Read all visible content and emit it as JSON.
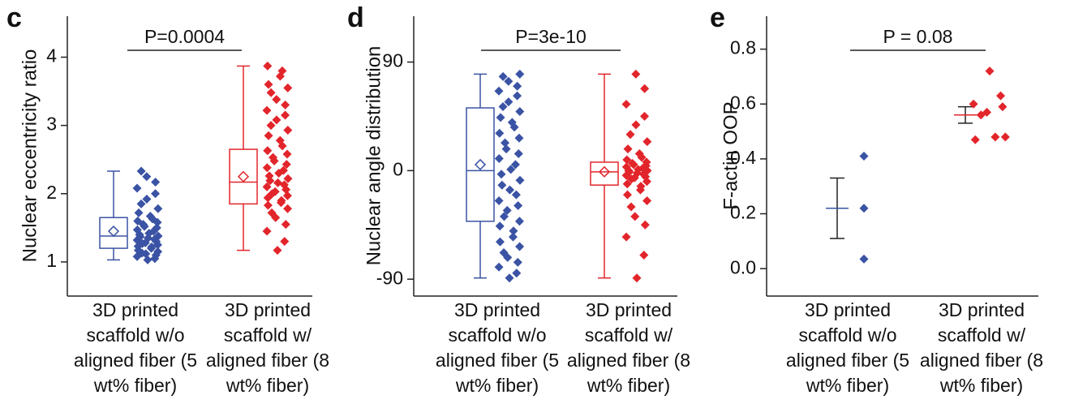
{
  "chart_data": [
    {
      "type": "box",
      "panel": "c",
      "ylabel": "Nuclear eccentricity ratio",
      "annotation": "P=0.0004",
      "categories": [
        "3D printed scaffold w/o aligned fiber (5 wt% fiber)",
        "3D printed scaffold w/ aligned fiber (8 wt% fiber)"
      ],
      "colors": [
        "#3a53a4",
        "#e2252b"
      ],
      "ylim": [
        0.5,
        4.6
      ],
      "yticks": [
        1,
        2,
        3,
        4
      ],
      "boxes": [
        {
          "min": 1.03,
          "q1": 1.2,
          "median": 1.38,
          "q3": 1.65,
          "max": 2.33,
          "mean": 1.45
        },
        {
          "min": 1.17,
          "q1": 1.85,
          "median": 2.17,
          "q3": 2.65,
          "max": 3.87,
          "mean": 2.25
        }
      ],
      "points": [
        [
          1.03,
          1.05,
          1.08,
          1.1,
          1.12,
          1.13,
          1.15,
          1.17,
          1.2,
          1.22,
          1.23,
          1.25,
          1.27,
          1.28,
          1.3,
          1.32,
          1.33,
          1.35,
          1.37,
          1.38,
          1.4,
          1.42,
          1.45,
          1.47,
          1.5,
          1.52,
          1.55,
          1.58,
          1.6,
          1.63,
          1.67,
          1.72,
          1.78,
          1.85,
          1.92,
          2.0,
          2.08,
          2.17,
          2.25,
          2.33
        ],
        [
          1.17,
          1.3,
          1.45,
          1.55,
          1.65,
          1.72,
          1.78,
          1.83,
          1.87,
          1.9,
          1.94,
          1.97,
          2.0,
          2.03,
          2.06,
          2.1,
          2.13,
          2.16,
          2.19,
          2.22,
          2.26,
          2.3,
          2.34,
          2.38,
          2.43,
          2.48,
          2.53,
          2.58,
          2.63,
          2.7,
          2.78,
          2.85,
          2.93,
          3.0,
          3.08,
          3.15,
          3.22,
          3.3,
          3.38,
          3.48,
          3.55,
          3.6,
          3.72,
          3.8,
          3.87
        ]
      ]
    },
    {
      "type": "box",
      "panel": "d",
      "ylabel": "Nuclear angle distribution",
      "annotation": "P=3e-10",
      "categories": [
        "3D printed scaffold w/o aligned fiber (5 wt% fiber)",
        "3D printed scaffold w/ aligned fiber (8 wt% fiber)"
      ],
      "colors": [
        "#3a53a4",
        "#e2252b"
      ],
      "ylim": [
        -104,
        128
      ],
      "yticks": [
        -90,
        0,
        90
      ],
      "boxes": [
        {
          "min": -89,
          "q1": -42,
          "median": 0,
          "q3": 52,
          "max": 80,
          "mean": 5
        },
        {
          "min": -89,
          "q1": -12,
          "median": -1,
          "q3": 7,
          "max": 80,
          "mean": -1
        }
      ],
      "points": [
        [
          -89,
          -85,
          -80,
          -76,
          -72,
          -68,
          -63,
          -59,
          -55,
          -50,
          -46,
          -42,
          -38,
          -33,
          -29,
          -25,
          -20,
          -16,
          -12,
          -8,
          -3,
          1,
          5,
          10,
          14,
          18,
          23,
          27,
          31,
          36,
          40,
          44,
          49,
          53,
          57,
          62,
          66,
          70,
          74,
          78,
          80
        ],
        [
          -89,
          -70,
          -55,
          -45,
          -38,
          -30,
          -25,
          -20,
          -16,
          -13,
          -11,
          -9,
          -7,
          -6,
          -5,
          -4,
          -3,
          -2,
          -1,
          0,
          0,
          1,
          2,
          3,
          4,
          5,
          6,
          7,
          9,
          11,
          14,
          18,
          24,
          30,
          38,
          45,
          55,
          68,
          80
        ]
      ]
    },
    {
      "type": "dot",
      "panel": "e",
      "ylabel": "F-actin OOP",
      "annotation": "P =  0.08",
      "categories": [
        "3D printed scaffold w/o aligned fiber (5 wt% fiber)",
        "3D printed scaffold w/ aligned fiber (8 wt% fiber)"
      ],
      "colors": [
        "#3a53a4",
        "#e2252b"
      ],
      "ylim": [
        -0.1,
        0.92
      ],
      "yticks": [
        {
          "value": 0,
          "label": "0.0"
        },
        {
          "value": 0.2,
          "label": "0.2"
        },
        {
          "value": 0.4,
          "label": "0.4"
        },
        {
          "value": 0.6,
          "label": "0.6"
        },
        {
          "value": 0.8,
          "label": "0.8"
        }
      ],
      "means": [
        0.22,
        0.56
      ],
      "errors": [
        0.11,
        0.03
      ],
      "points": [
        [
          0.41,
          0.22,
          0.035
        ],
        [
          0.72,
          0.63,
          0.6,
          0.59,
          0.57,
          0.56,
          0.48,
          0.47,
          0.48
        ]
      ]
    }
  ]
}
